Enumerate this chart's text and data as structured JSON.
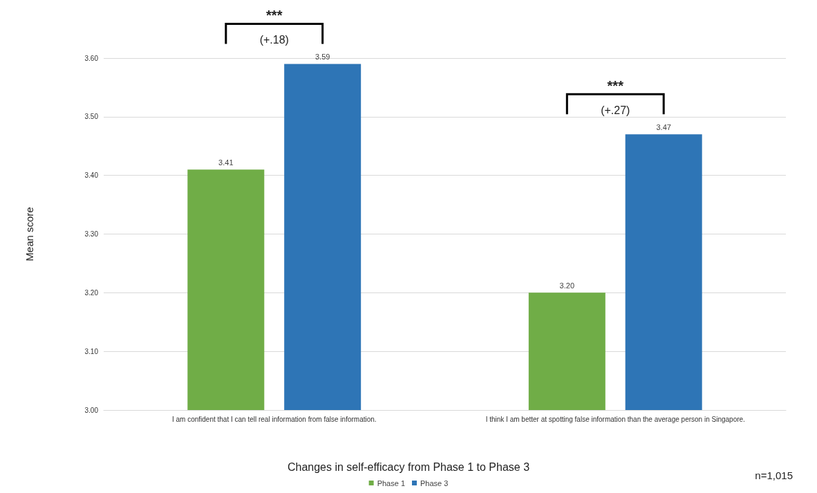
{
  "chart_data": {
    "type": "bar",
    "xlabel": "Changes in self-efficacy from Phase 1 to Phase 3",
    "ylabel": "Mean score",
    "categories": [
      "I am confident that I can tell real information from false information.",
      "I think I am better at spotting false information than the average person in Singapore."
    ],
    "series": [
      {
        "name": "Phase 1",
        "color": "#70ad47",
        "values": [
          3.41,
          3.2
        ],
        "value_labels": [
          "3.41",
          "3.20"
        ]
      },
      {
        "name": "Phase 3",
        "color": "#2e75b6",
        "values": [
          3.59,
          3.47
        ],
        "value_labels": [
          "3.59",
          "3.47"
        ]
      }
    ],
    "ylim": [
      3.0,
      3.6
    ],
    "yticks": [
      {
        "value": 3.0,
        "label": "3.00"
      },
      {
        "value": 3.1,
        "label": "3.10"
      },
      {
        "value": 3.2,
        "label": "3.20"
      },
      {
        "value": 3.3,
        "label": "3.30"
      },
      {
        "value": 3.4,
        "label": "3.40"
      },
      {
        "value": 3.5,
        "label": "3.50"
      },
      {
        "value": 3.6,
        "label": "3.60"
      }
    ],
    "grid": "y",
    "legend": "bottom",
    "annotations": [
      "***",
      "(+.18)",
      "***",
      "(+.27)",
      "n=1,015"
    ]
  }
}
